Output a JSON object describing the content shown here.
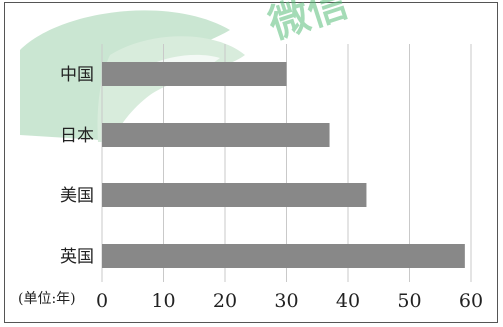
{
  "chart_data": {
    "type": "bar",
    "orientation": "horizontal",
    "categories": [
      "中国",
      "日本",
      "美国",
      "英国"
    ],
    "values": [
      30,
      37,
      43,
      59
    ],
    "title": "",
    "xlabel": "",
    "ylabel": "",
    "unit_label": "(单位:年)",
    "xlim": [
      0,
      60
    ],
    "xticks": [
      0,
      10,
      20,
      30,
      40,
      50,
      60
    ],
    "grid": "vertical",
    "legend": "none",
    "bar_color": "#888888"
  },
  "watermark": {
    "text": "微信",
    "colors": [
      "#8cc7a0",
      "#3bb16a"
    ]
  }
}
